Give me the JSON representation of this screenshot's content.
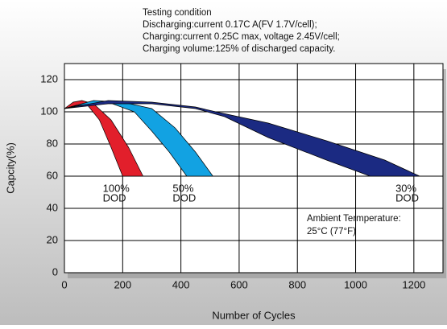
{
  "chart_data": {
    "type": "area",
    "notes": [
      "Testing condition",
      "Discharging:current 0.17C A(FV 1.7V/cell);",
      "Charging:current 0.25C max, voltage 2.45V/cell;",
      "Charging volume:125% of discharged capacity."
    ],
    "annotation": [
      "Ambient Termperature:",
      "25°C (77°F)"
    ],
    "xlabel": "Number of Cycles",
    "ylabel": "Capcity(%)",
    "xlim": [
      0,
      1300
    ],
    "ylim": [
      0,
      130
    ],
    "xticks": [
      0,
      200,
      400,
      600,
      800,
      1000,
      1200
    ],
    "yticks": [
      0,
      20,
      40,
      60,
      80,
      100,
      120
    ],
    "grid": true,
    "series": [
      {
        "name": "100%",
        "label_lines": [
          "100%",
          "DOD"
        ],
        "color": "#e21f2b",
        "x": [
          0,
          30,
          60,
          100,
          160,
          220,
          270,
          200,
          160,
          120,
          80,
          40,
          0
        ],
        "values": [
          102,
          106,
          107,
          105,
          95,
          78,
          60,
          60,
          78,
          95,
          104,
          104,
          102
        ]
      },
      {
        "name": "50%",
        "label_lines": [
          "50%",
          "DOD"
        ],
        "color": "#12a2e2",
        "x": [
          0,
          100,
          200,
          300,
          380,
          450,
          510,
          420,
          360,
          300,
          240,
          150,
          50,
          0
        ],
        "values": [
          102,
          107,
          106,
          102,
          90,
          75,
          60,
          60,
          75,
          88,
          100,
          106,
          104,
          102
        ]
      },
      {
        "name": "30%",
        "label_lines": [
          "30%",
          "DOD"
        ],
        "color": "#1b2a82",
        "x": [
          0,
          150,
          300,
          450,
          520,
          700,
          900,
          1100,
          1220,
          1050,
          900,
          700,
          550,
          450,
          300,
          150,
          0
        ],
        "values": [
          102,
          107,
          106,
          103,
          100,
          93,
          82,
          70,
          60,
          60,
          70,
          84,
          97,
          102,
          105,
          105,
          102
        ]
      }
    ]
  }
}
